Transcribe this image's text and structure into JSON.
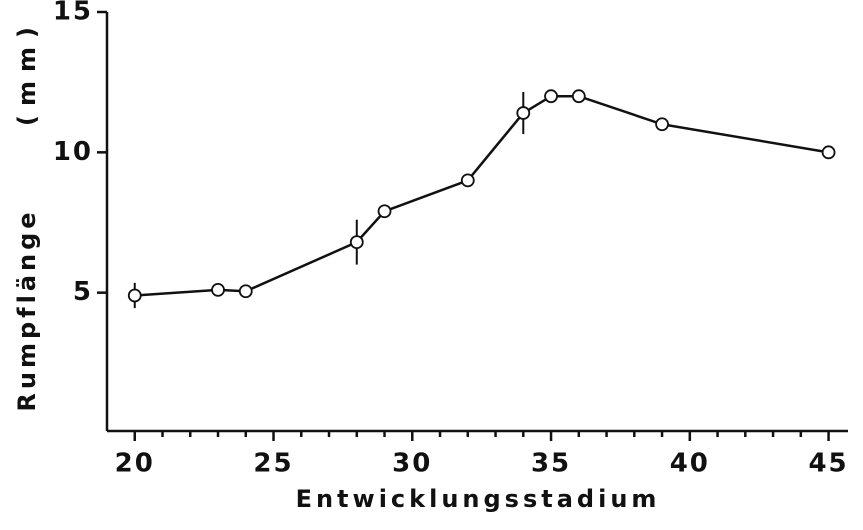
{
  "chart_data": {
    "type": "line",
    "xlabel": "Entwicklungsstadium",
    "ylabel": "Rumpflänge",
    "yunit": "(mm)",
    "x": [
      20,
      23,
      24,
      28,
      29,
      32,
      34,
      35,
      36,
      39,
      45
    ],
    "series": [
      {
        "color": "#111111",
        "values": [
          4.9,
          5.1,
          5.05,
          6.8,
          7.9,
          9.0,
          11.4,
          12.0,
          12.0,
          11.0,
          10.0
        ],
        "errors": [
          0.45,
          null,
          null,
          0.8,
          null,
          null,
          0.75,
          null,
          null,
          null,
          null
        ]
      }
    ],
    "xlim": [
      19,
      45.7
    ],
    "ylim": [
      0,
      15
    ],
    "xticks": [
      20,
      25,
      30,
      35,
      40,
      45
    ],
    "xminorticks": [
      21,
      22,
      23,
      24,
      26,
      27,
      28,
      29,
      31,
      32,
      33,
      34,
      36,
      37,
      38,
      39,
      41,
      42,
      43,
      44
    ],
    "yticks": [
      5,
      10,
      15
    ]
  }
}
